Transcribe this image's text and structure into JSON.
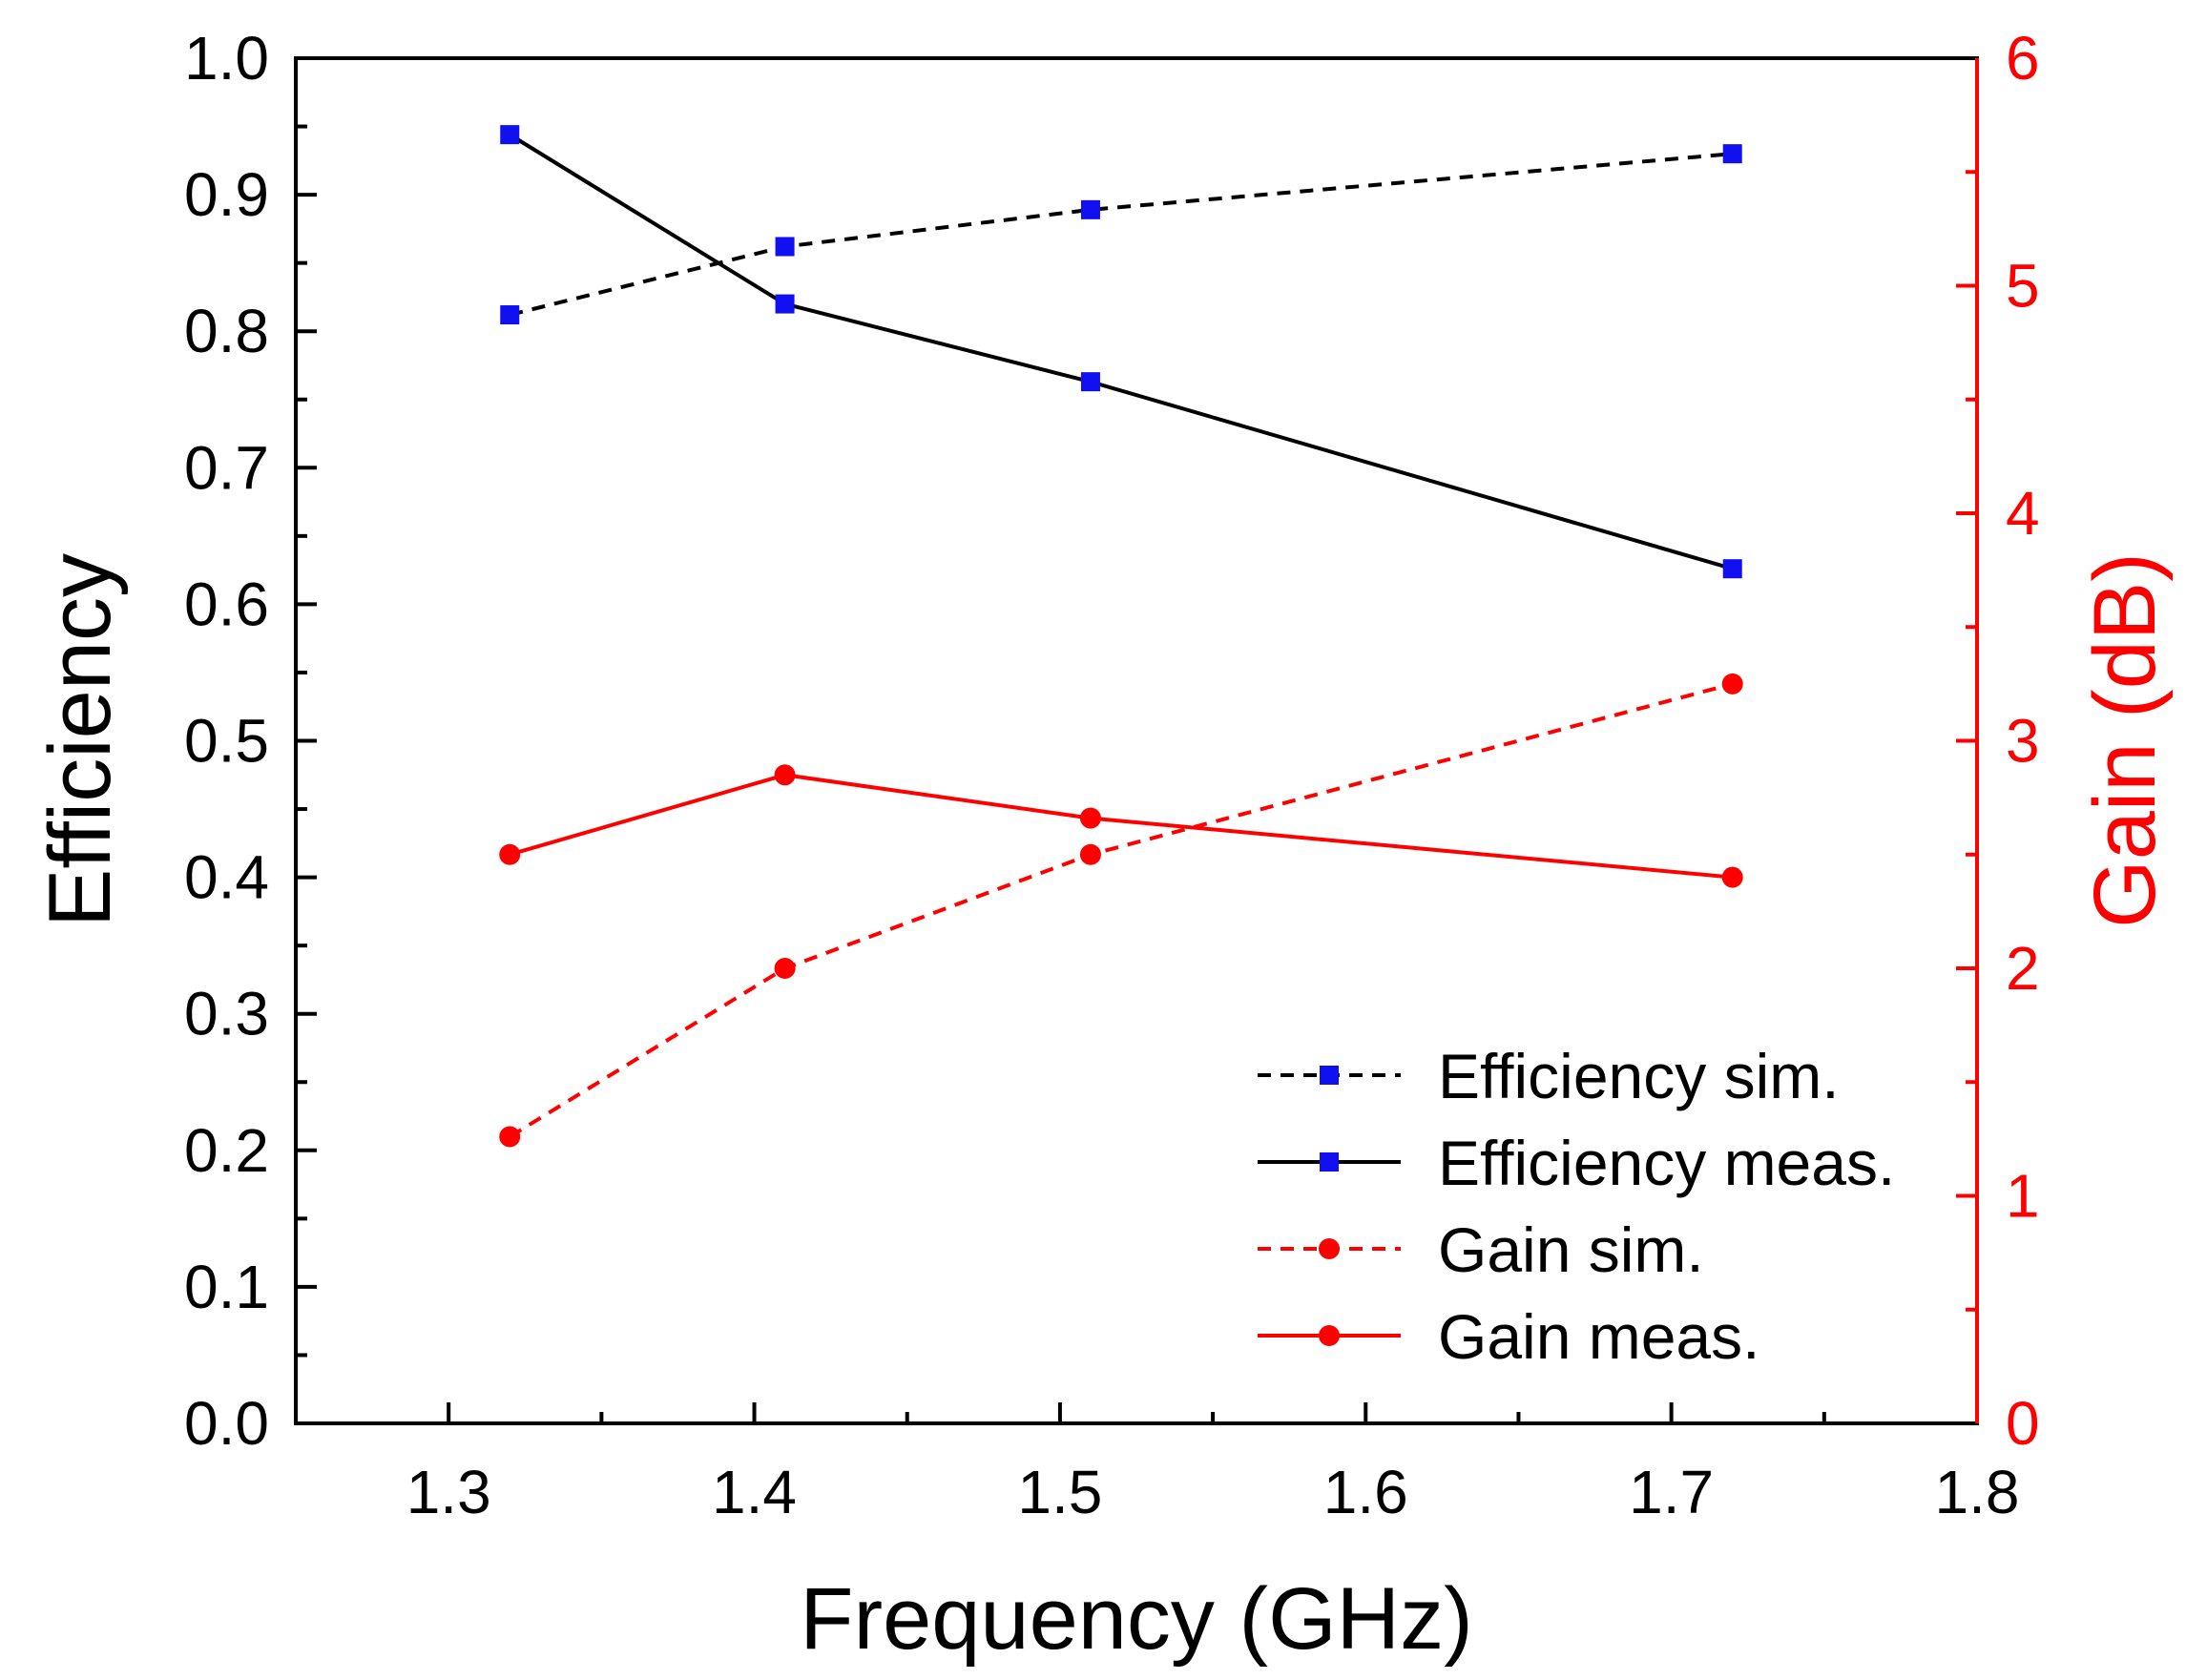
{
  "chart_data": {
    "type": "line",
    "x": [
      1.32,
      1.41,
      1.51,
      1.72
    ],
    "xlabel": "Frequency (GHz)",
    "ylabel": "Efficiency",
    "y2label": "Gain (dB)",
    "xlim": [
      1.25,
      1.8
    ],
    "ylim": [
      0.0,
      1.0
    ],
    "y2lim": [
      0,
      6
    ],
    "xticks": [
      "1.3",
      "1.4",
      "1.5",
      "1.6",
      "1.7",
      "1.8"
    ],
    "yticks": [
      "0.0",
      "0.1",
      "0.2",
      "0.3",
      "0.4",
      "0.5",
      "0.6",
      "0.7",
      "0.8",
      "0.9",
      "1.0"
    ],
    "y2ticks": [
      "0",
      "1",
      "2",
      "3",
      "4",
      "5",
      "6"
    ],
    "legend_position": "bottom-right",
    "colors": {
      "efficiency_line": "#000000",
      "efficiency_marker": "#1010f0",
      "gain": "#ff0000",
      "axis_right": "#ff0000"
    },
    "series": [
      {
        "name": "Efficiency sim.",
        "axis": "left",
        "style": "dashed",
        "marker": "square",
        "values": [
          0.812,
          0.862,
          0.889,
          0.93
        ]
      },
      {
        "name": "Efficiency meas.",
        "axis": "left",
        "style": "solid",
        "marker": "square",
        "values": [
          0.944,
          0.82,
          0.763,
          0.626
        ]
      },
      {
        "name": "Gain sim.",
        "axis": "right",
        "style": "dashed",
        "marker": "circle",
        "values": [
          1.26,
          2.0,
          2.5,
          3.25
        ]
      },
      {
        "name": "Gain meas.",
        "axis": "right",
        "style": "solid",
        "marker": "circle",
        "values": [
          2.5,
          2.85,
          2.66,
          2.4
        ]
      }
    ]
  }
}
